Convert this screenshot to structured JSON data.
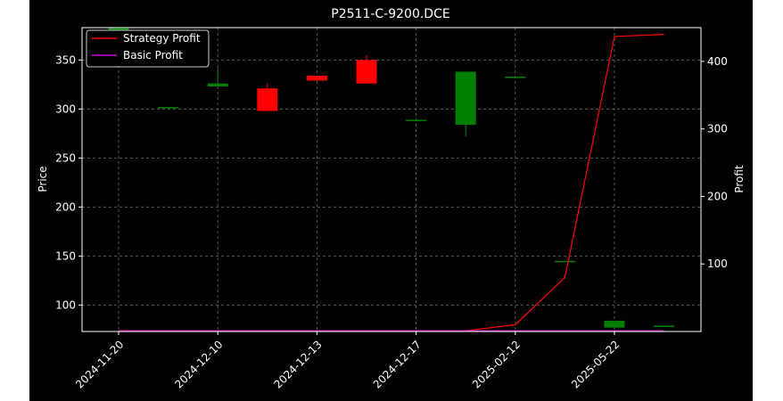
{
  "chart_data": {
    "type": "candlestick",
    "title": "P2511-C-9200.DCE",
    "xlabel": "",
    "ylabel_left": "Price",
    "ylabel_right": "Profit",
    "x_tick_labels": [
      "2024-11-20",
      "2024-12-10",
      "2024-12-13",
      "2024-12-17",
      "2025-02-12",
      "2025-05-22"
    ],
    "x_tick_indices": [
      0,
      2,
      4,
      6,
      8,
      10
    ],
    "ylim_left": [
      73,
      383
    ],
    "ylim_right": [
      0,
      450
    ],
    "y_ticks_left": [
      100,
      150,
      200,
      250,
      300,
      350
    ],
    "y_ticks_right": [
      100,
      200,
      300,
      400
    ],
    "grid": true,
    "legend_position": "top-left",
    "colors": {
      "background": "#000000",
      "page": "#ffffff",
      "up": "#008000",
      "down": "#ff0000",
      "strategy_line": "#ff0000",
      "basic_line": "#cc00cc",
      "text": "#ffffff"
    },
    "candles": [
      {
        "index": 0,
        "open": 378,
        "close": 383,
        "high": 383,
        "low": 378
      },
      {
        "index": 1,
        "open": 302,
        "close": 302,
        "high": 302,
        "low": 302
      },
      {
        "index": 2,
        "open": 323,
        "close": 326,
        "high": 342,
        "low": 323
      },
      {
        "index": 3,
        "open": 321,
        "close": 298,
        "high": 326,
        "low": 298
      },
      {
        "index": 4,
        "open": 334,
        "close": 329,
        "high": 334,
        "low": 329
      },
      {
        "index": 5,
        "open": 350,
        "close": 326,
        "high": 355,
        "low": 326
      },
      {
        "index": 6,
        "open": 289,
        "close": 289,
        "high": 289,
        "low": 289
      },
      {
        "index": 7,
        "open": 284,
        "close": 338,
        "high": 338,
        "low": 272
      },
      {
        "index": 8,
        "open": 333,
        "close": 333,
        "high": 333,
        "low": 333
      },
      {
        "index": 9,
        "open": 145,
        "close": 145,
        "high": 145,
        "low": 145
      },
      {
        "index": 10,
        "open": 77,
        "close": 84,
        "high": 84,
        "low": 77
      },
      {
        "index": 11,
        "open": 79,
        "close": 79,
        "high": 79,
        "low": 79
      }
    ],
    "series": [
      {
        "name": "Strategy Profit",
        "x": [
          0,
          1,
          2,
          3,
          4,
          5,
          6,
          7,
          8,
          9,
          10,
          11
        ],
        "values": [
          1,
          1,
          1,
          1,
          1,
          1,
          1,
          1,
          10,
          80,
          437,
          440
        ]
      },
      {
        "name": "Basic Profit",
        "x": [
          0,
          1,
          2,
          3,
          4,
          5,
          6,
          7,
          8,
          9,
          10,
          11
        ],
        "values": [
          1,
          1,
          1,
          1,
          1,
          1,
          1,
          1,
          1,
          1,
          1,
          1
        ]
      }
    ]
  }
}
